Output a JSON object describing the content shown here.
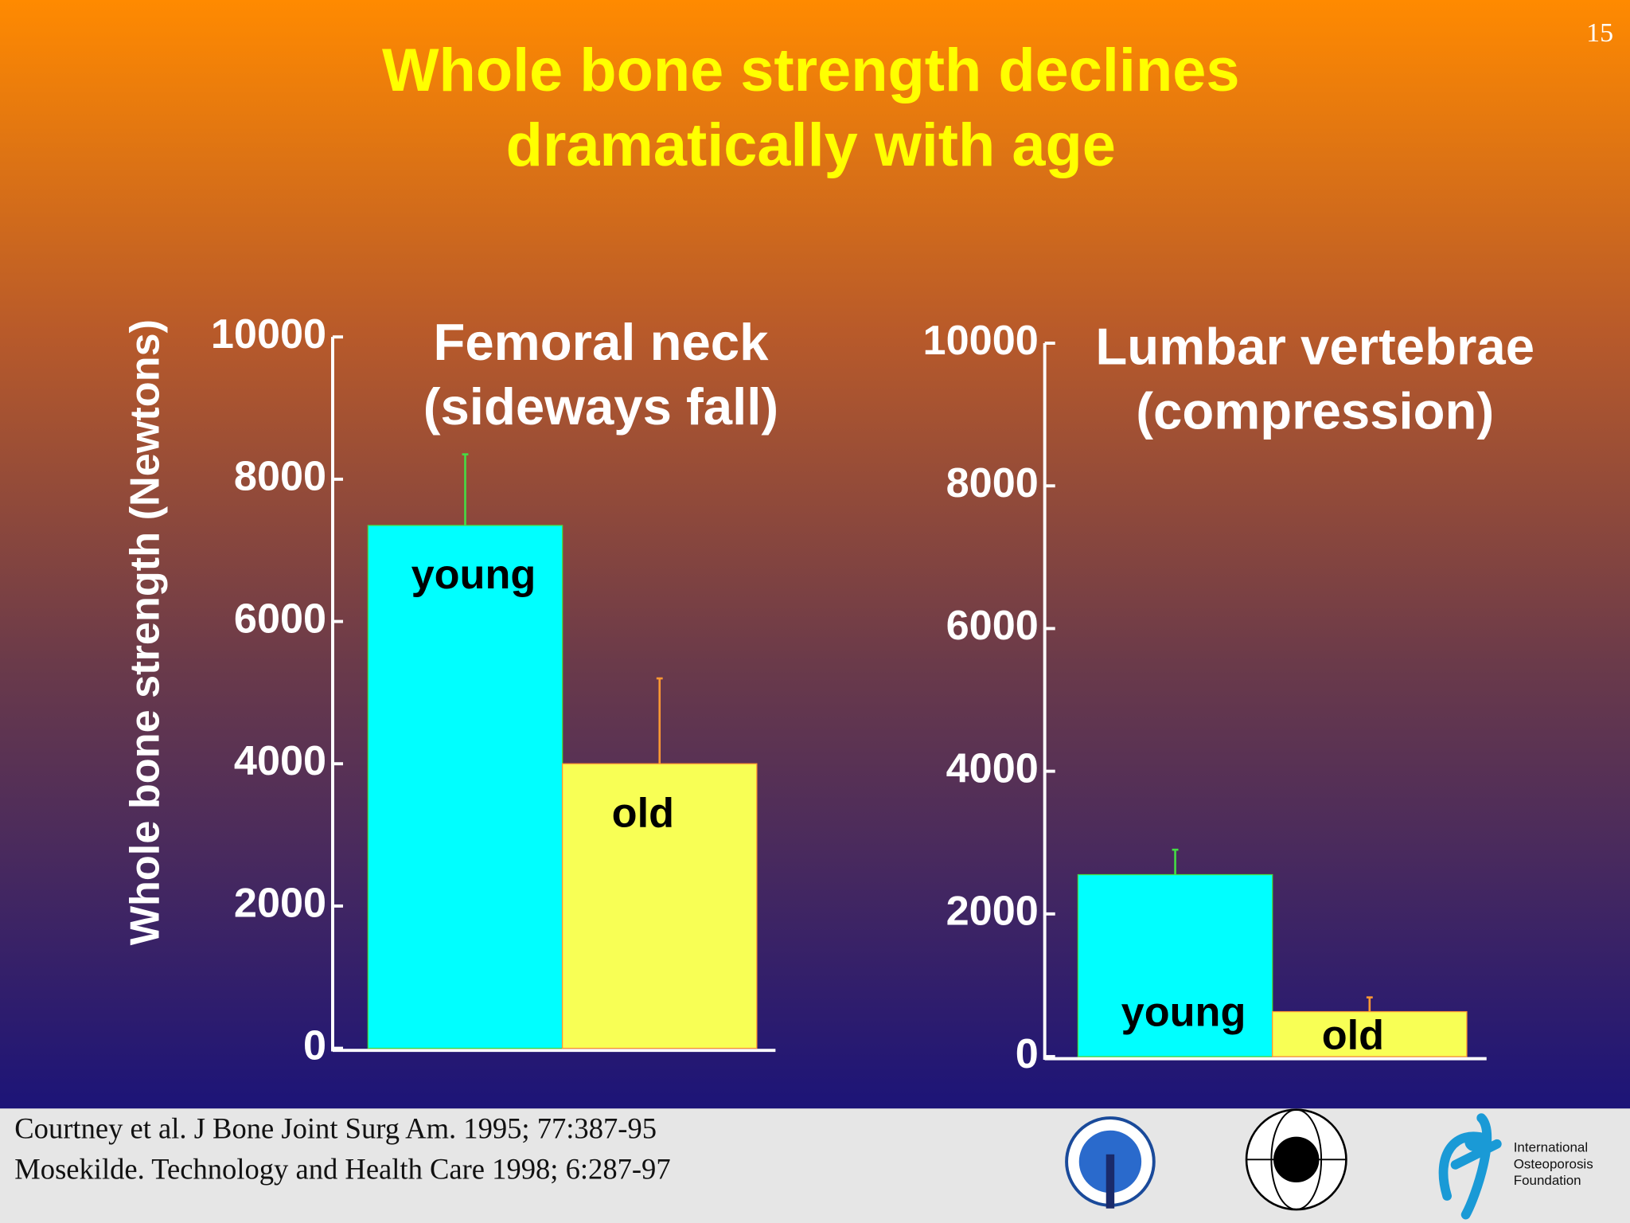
{
  "slide": {
    "title": [
      "Whole bone strength declines",
      "dramatically with age"
    ],
    "page_number": "15"
  },
  "chart_data": [
    {
      "type": "bar",
      "title": [
        "Femoral neck",
        "(sideways fall)"
      ],
      "ylabel": "Whole bone strength (Newtons)",
      "categories": [
        "young",
        "old"
      ],
      "values": [
        7350,
        4000
      ],
      "errors": [
        1000,
        1200
      ],
      "colors": [
        "#00ffff",
        "#f8ff55"
      ],
      "error_colors": [
        "#44dd44",
        "#ff9933"
      ],
      "ylim": [
        0,
        10000
      ],
      "yticks": [
        0,
        2000,
        4000,
        6000,
        8000,
        10000
      ]
    },
    {
      "type": "bar",
      "title": [
        "Lumbar vertebrae",
        "(compression)"
      ],
      "categories": [
        "young",
        "old"
      ],
      "values": [
        2550,
        630
      ],
      "errors": [
        350,
        200
      ],
      "colors": [
        "#00ffff",
        "#f8ff55"
      ],
      "error_colors": [
        "#44dd44",
        "#ff9933"
      ],
      "ylim": [
        0,
        10000
      ],
      "yticks": [
        0,
        2000,
        4000,
        6000,
        8000,
        10000
      ]
    }
  ],
  "footer": {
    "references": [
      "Courtney et al. J Bone Joint Surg Am. 1995; 77:387-95",
      "Mosekilde. Technology and Health Care 1998; 6:287-97"
    ],
    "logo_text": [
      "International",
      "Osteoporosis",
      "Foundation"
    ]
  }
}
